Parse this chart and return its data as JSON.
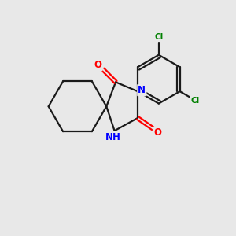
{
  "bg_color": "#e8e8e8",
  "bond_color": "#1a1a1a",
  "N_color": "#0000ff",
  "O_color": "#ff0000",
  "Cl_color": "#008000",
  "line_width": 1.6,
  "fig_width": 3.0,
  "fig_height": 3.0,
  "dpi": 100,
  "xlim": [
    0,
    10
  ],
  "ylim": [
    0,
    10
  ],
  "hex_r": 1.25,
  "ph_r": 1.05
}
